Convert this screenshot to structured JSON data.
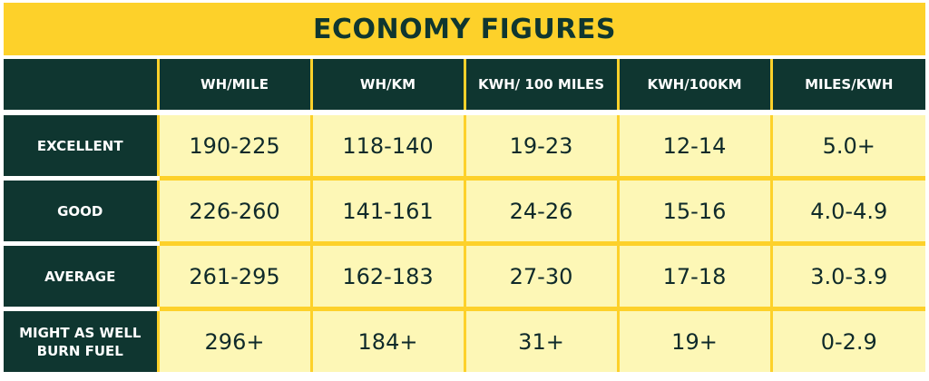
{
  "title": "ECONOMY FIGURES",
  "table": {
    "columns": [
      "WH/MILE",
      "WH/KM",
      "KWH/ 100 MILES",
      "KWH/100KM",
      "MILES/KWH"
    ],
    "rows": [
      {
        "label": "EXCELLENT",
        "values": [
          "190-225",
          "118-140",
          "19-23",
          "12-14",
          "5.0+"
        ]
      },
      {
        "label": "GOOD",
        "values": [
          "226-260",
          "141-161",
          "24-26",
          "15-16",
          "4.0-4.9"
        ]
      },
      {
        "label": "AVERAGE",
        "values": [
          "261-295",
          "162-183",
          "27-30",
          "17-18",
          "3.0-3.9"
        ]
      },
      {
        "label_lines": [
          "MIGHT AS WELL",
          "BURN FUEL"
        ],
        "values": [
          "296+",
          "184+",
          "31+",
          "19+",
          "0-2.9"
        ]
      }
    ]
  },
  "colors": {
    "accent_yellow": "#fdd12a",
    "dark_green": "#0f3630",
    "cell_cream": "#fdf7b6"
  }
}
